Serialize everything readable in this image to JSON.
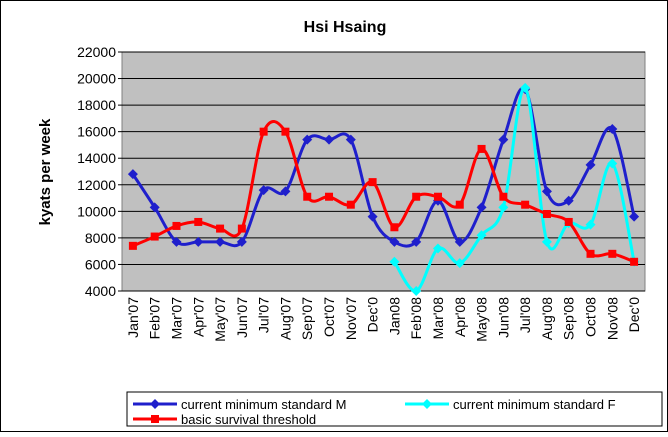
{
  "chart_data": {
    "type": "line",
    "title": "Hsi Hsaing",
    "ylabel": "kyats per week",
    "categories": [
      "Jan'07",
      "Feb'07",
      "Mar'07",
      "Apr'07",
      "May'07",
      "Jun'07",
      "Jul'07",
      "Aug'07",
      "Sep'07",
      "Oct'07",
      "Nov'07",
      "Dec'0",
      "Jan08",
      "Feb'08",
      "Mar'08",
      "Apr'08",
      "May'08",
      "Jun'08",
      "Jul'08",
      "Aug'08",
      "Sep'08",
      "Oct'08",
      "Nov'08",
      "Dec'0"
    ],
    "series": [
      {
        "name": "current minimum standard M",
        "color": "#1f1fcc",
        "marker": "diamond",
        "values": [
          12800,
          10300,
          7700,
          7700,
          7700,
          7700,
          11600,
          11500,
          15400,
          15400,
          15400,
          9600,
          7700,
          7700,
          10800,
          7700,
          10300,
          15400,
          19200,
          11500,
          10800,
          13500,
          16200,
          9600
        ]
      },
      {
        "name": "current minimum standard F",
        "color": "#00ffff",
        "marker": "diamond",
        "values": [
          null,
          null,
          null,
          null,
          null,
          null,
          null,
          null,
          null,
          null,
          null,
          null,
          6200,
          4000,
          7200,
          6100,
          8200,
          10300,
          19300,
          7700,
          9100,
          9000,
          13600,
          6200
        ]
      },
      {
        "name": "basic survival threshold",
        "color": "#ff0000",
        "marker": "square",
        "values": [
          7400,
          8100,
          8900,
          9200,
          8700,
          8700,
          16000,
          16000,
          11100,
          11100,
          10500,
          12200,
          8800,
          11100,
          11100,
          10500,
          14700,
          11100,
          10500,
          9800,
          9200,
          6800,
          6800,
          6200
        ]
      }
    ],
    "ylim": [
      4000,
      22000
    ],
    "yticks": [
      4000,
      6000,
      8000,
      10000,
      12000,
      14000,
      16000,
      18000,
      20000,
      22000
    ],
    "grid": true,
    "legend": "bottom"
  }
}
